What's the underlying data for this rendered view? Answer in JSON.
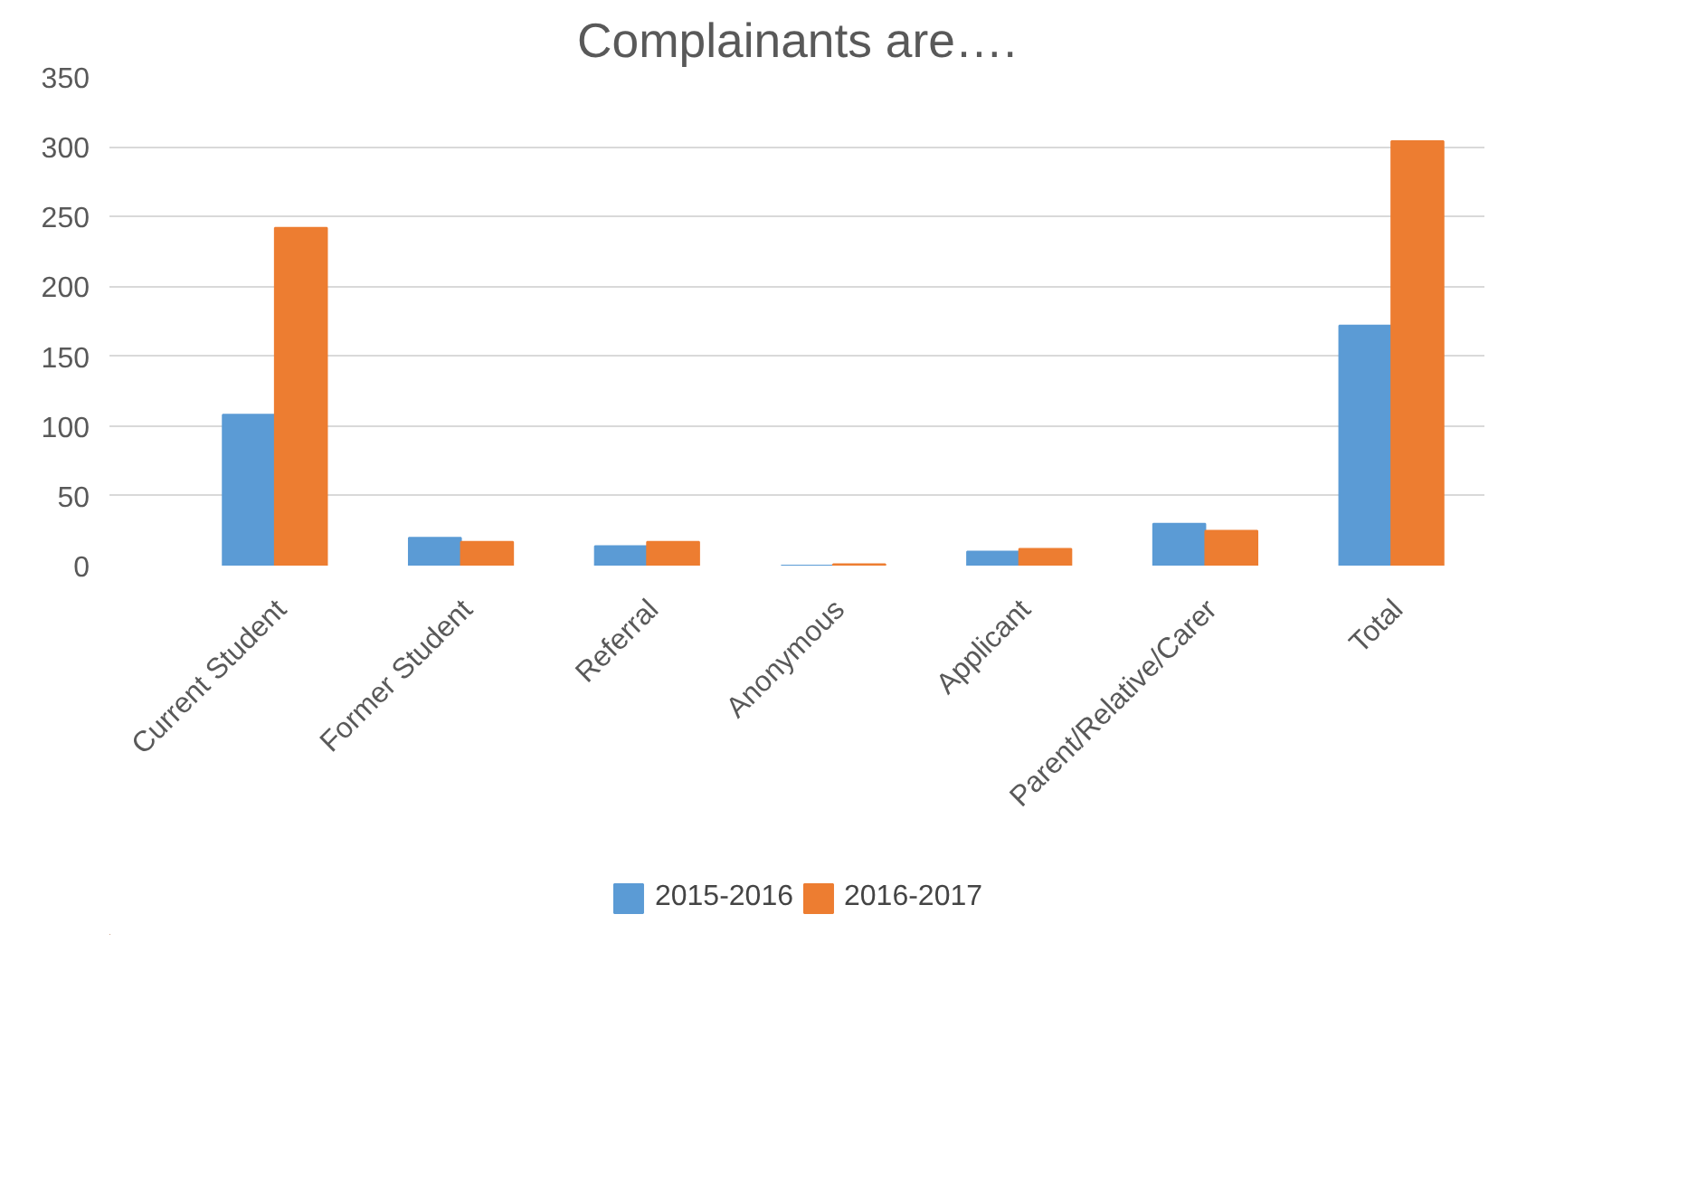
{
  "chart_data": {
    "type": "bar",
    "title": "Complainants are….",
    "categories": [
      "Current Student",
      "Former Student",
      "Referral",
      "Anonymous",
      "Applicant",
      "Parent/Relative/Carer",
      "Total"
    ],
    "series": [
      {
        "name": "2015-2016",
        "color": "#5b9bd5",
        "values": [
          108,
          20,
          14,
          0,
          10,
          30,
          172
        ]
      },
      {
        "name": "2016-2017",
        "color": "#ed7d31",
        "values": [
          242,
          17,
          17,
          1,
          12,
          25,
          304
        ]
      }
    ],
    "ylim": [
      0,
      350
    ],
    "yticks": [
      0,
      50,
      100,
      150,
      200,
      250,
      300,
      350
    ],
    "grid": "y",
    "legend": "bottom"
  }
}
